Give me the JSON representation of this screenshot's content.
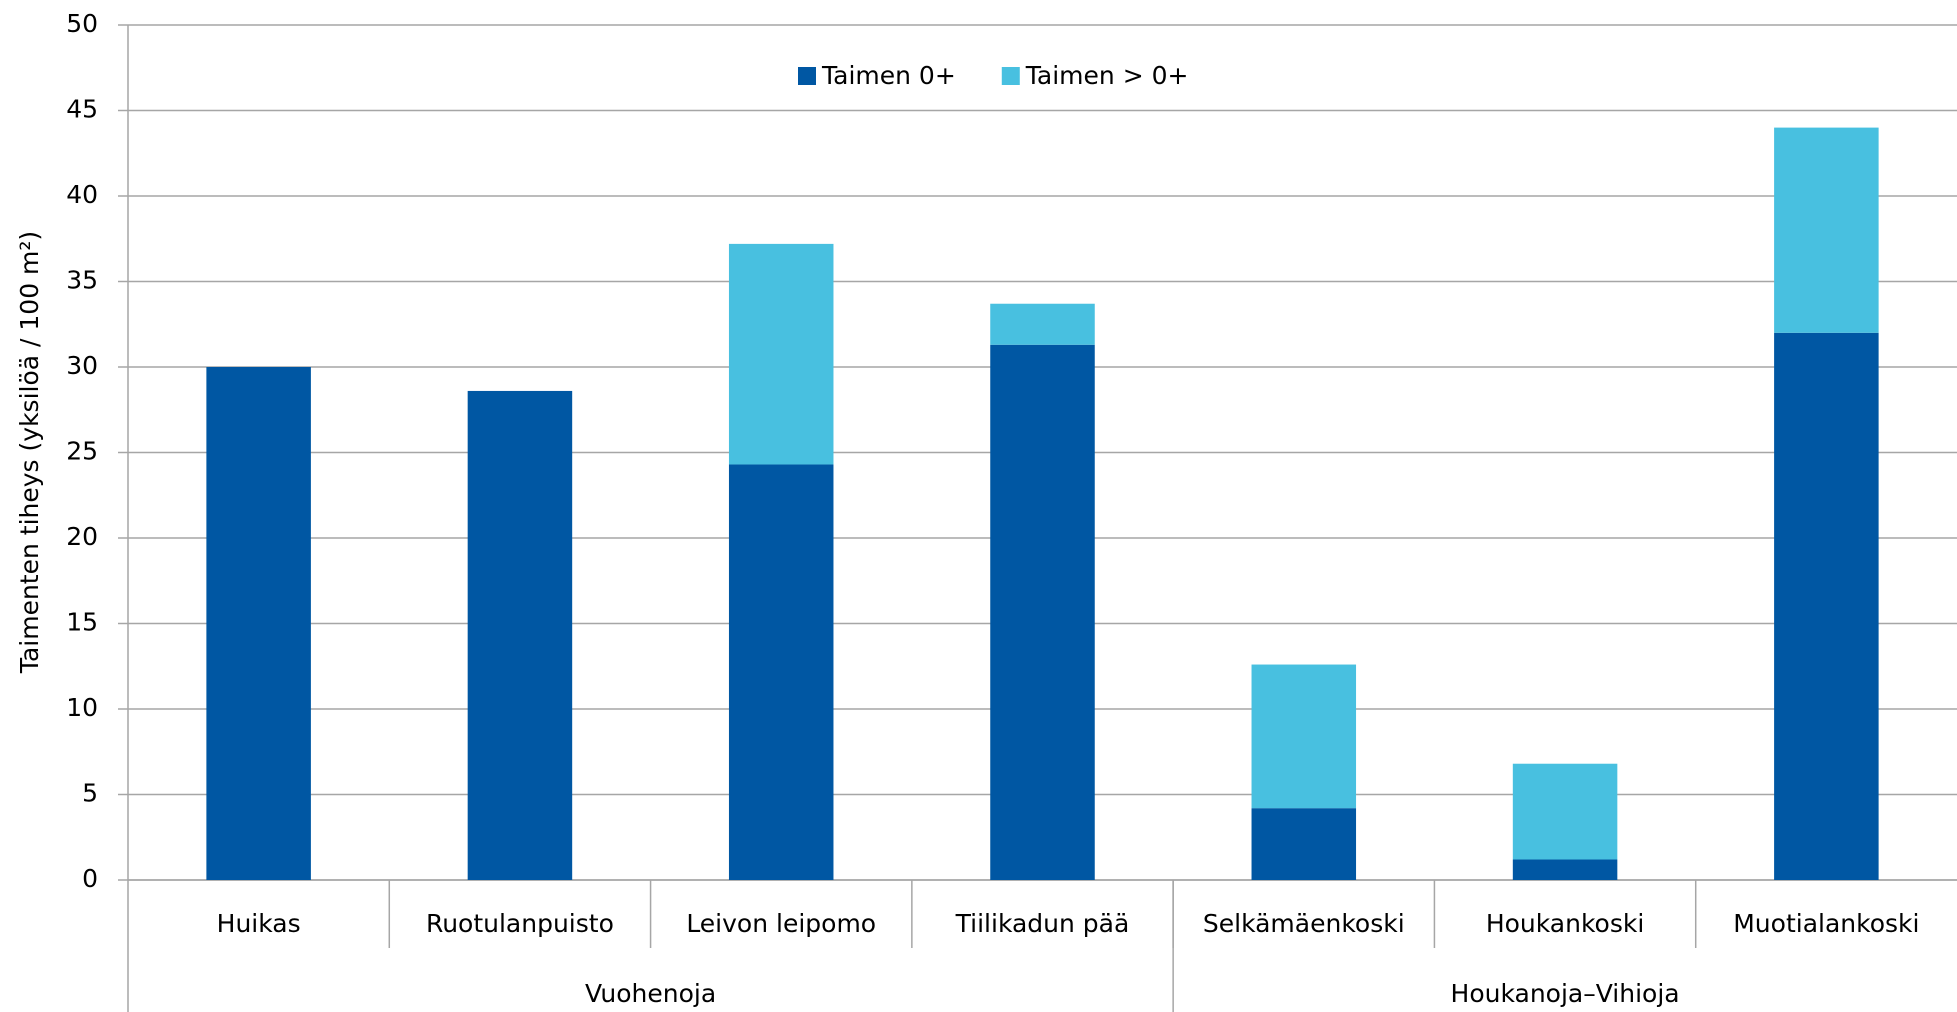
{
  "chart_data": {
    "type": "stacked_bar",
    "y_axis_label": "Taimenten tiheys (yksilöä / 100 m²)",
    "categories": [
      "Huikas",
      "Ruotulanpuisto",
      "Leivon leipomo",
      "Tiilikadun pää",
      "Selkämäenkoski",
      "Houkankoski",
      "Muotialankoski"
    ],
    "groups": [
      {
        "label": "Vuohenoja",
        "size": 4
      },
      {
        "label": "Houkanoja–Vihioja",
        "size": 3
      }
    ],
    "series": [
      {
        "name": "Taimen 0+",
        "color": "#0057a3",
        "values": [
          30.0,
          28.6,
          24.3,
          31.3,
          4.2,
          1.2,
          32.0
        ]
      },
      {
        "name": "Taimen > 0+",
        "color": "#48c0e0",
        "values": [
          0,
          0,
          12.9,
          2.4,
          8.4,
          5.6,
          12.0
        ]
      }
    ],
    "ylim": [
      0,
      50
    ],
    "yticks": [
      0,
      5,
      10,
      15,
      20,
      25,
      30,
      35,
      40,
      45,
      50
    ],
    "grid": true,
    "legend": "top"
  }
}
